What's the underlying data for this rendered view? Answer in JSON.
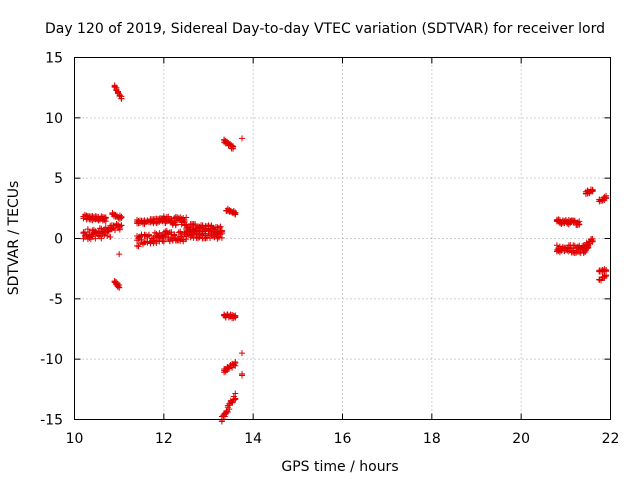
{
  "chart_data": {
    "type": "scatter",
    "title": "Day 120 of 2019, Sidereal Day-to-day VTEC variation (SDTVAR) for receiver lord",
    "xlabel": "GPS time / hours",
    "ylabel": "SDTVAR / TECUs",
    "xlim": [
      10,
      22
    ],
    "ylim": [
      -15,
      15
    ],
    "x_ticks": [
      10,
      12,
      14,
      16,
      18,
      20,
      22
    ],
    "y_ticks": [
      -15,
      -10,
      -5,
      0,
      5,
      10,
      15
    ],
    "grid": true,
    "marker": "plus",
    "color": "#e00000",
    "segments": [
      {
        "x": [
          10.2,
          10.7
        ],
        "y": [
          1.75,
          1.6
        ],
        "spread": 0.22
      },
      {
        "x": [
          10.2,
          10.8
        ],
        "y": [
          0.35,
          0.5
        ],
        "spread": 0.45
      },
      {
        "x": [
          10.8,
          11.05
        ],
        "y": [
          0.9,
          1.0
        ],
        "spread": 0.25
      },
      {
        "x": [
          10.85,
          11.05
        ],
        "y": [
          2.0,
          1.7
        ],
        "spread": 0.15
      },
      {
        "x": [
          10.9,
          11.05
        ],
        "y": [
          12.6,
          11.7
        ],
        "spread": 0.15
      },
      {
        "x": [
          10.9,
          11.0
        ],
        "y": [
          -3.6,
          -4.0
        ],
        "spread": 0.15
      },
      {
        "x": [
          11.0,
          11.0
        ],
        "y": [
          -1.3,
          -1.3
        ],
        "spread": 0.0
      },
      {
        "x": [
          11.4,
          12.0
        ],
        "y": [
          1.35,
          1.5
        ],
        "spread": 0.2
      },
      {
        "x": [
          11.4,
          12.0
        ],
        "y": [
          -0.2,
          0.2
        ],
        "spread": 0.5
      },
      {
        "x": [
          12.0,
          12.5
        ],
        "y": [
          1.5,
          1.4
        ],
        "spread": 0.35
      },
      {
        "x": [
          12.0,
          12.5
        ],
        "y": [
          0.2,
          0.2
        ],
        "spread": 0.45
      },
      {
        "x": [
          12.5,
          13.3
        ],
        "y": [
          1.0,
          0.7
        ],
        "spread": 0.3
      },
      {
        "x": [
          12.5,
          13.3
        ],
        "y": [
          0.4,
          0.3
        ],
        "spread": 0.35
      },
      {
        "x": [
          13.35,
          13.55
        ],
        "y": [
          8.1,
          7.5
        ],
        "spread": 0.15
      },
      {
        "x": [
          13.75,
          13.75
        ],
        "y": [
          8.3,
          8.3
        ],
        "spread": 0.0
      },
      {
        "x": [
          13.4,
          13.6
        ],
        "y": [
          2.4,
          2.1
        ],
        "spread": 0.15
      },
      {
        "x": [
          13.35,
          13.6
        ],
        "y": [
          -6.4,
          -6.5
        ],
        "spread": 0.15
      },
      {
        "x": [
          13.35,
          13.6
        ],
        "y": [
          -11.0,
          -10.4
        ],
        "spread": 0.2
      },
      {
        "x": [
          13.75,
          13.75
        ],
        "y": [
          -9.5,
          -9.5
        ],
        "spread": 0.0
      },
      {
        "x": [
          13.75,
          13.75
        ],
        "y": [
          -11.3,
          -10.9
        ],
        "spread": 0.1
      },
      {
        "x": [
          13.3,
          13.6
        ],
        "y": [
          -14.9,
          -13.1
        ],
        "spread": 0.3
      },
      {
        "x": [
          20.8,
          21.3
        ],
        "y": [
          1.4,
          1.3
        ],
        "spread": 0.2
      },
      {
        "x": [
          20.8,
          21.5
        ],
        "y": [
          -0.8,
          -0.9
        ],
        "spread": 0.35
      },
      {
        "x": [
          21.4,
          21.6
        ],
        "y": [
          -0.6,
          -0.1
        ],
        "spread": 0.2
      },
      {
        "x": [
          21.45,
          21.6
        ],
        "y": [
          3.8,
          4.0
        ],
        "spread": 0.15
      },
      {
        "x": [
          21.75,
          21.9
        ],
        "y": [
          3.1,
          3.4
        ],
        "spread": 0.15
      },
      {
        "x": [
          21.75,
          21.9
        ],
        "y": [
          -2.7,
          -2.6
        ],
        "spread": 0.12
      },
      {
        "x": [
          21.75,
          21.9
        ],
        "y": [
          -3.5,
          -3.1
        ],
        "spread": 0.12
      }
    ]
  }
}
